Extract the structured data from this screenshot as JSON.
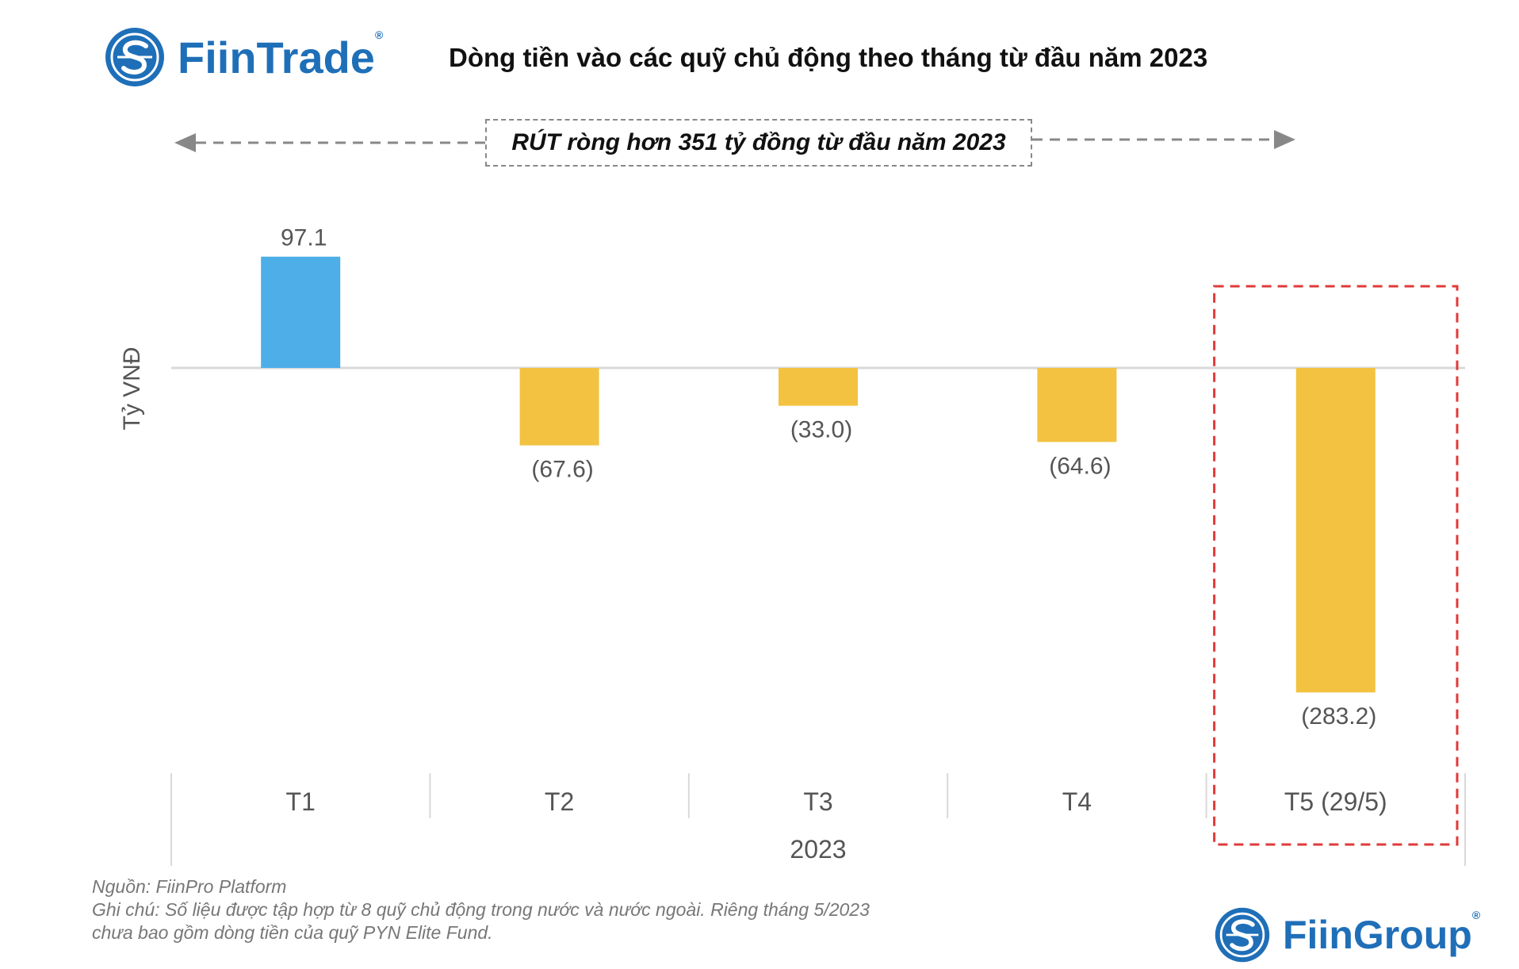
{
  "brand": {
    "name": "FiinTrade",
    "group_name": "FiinGroup",
    "mark": "®",
    "icon": "fiin-s-logo-icon"
  },
  "title": "Dòng tiền vào các quỹ chủ động theo tháng từ đầu năm 2023",
  "banner": "RÚT ròng hơn 351 tỷ đồng từ đầu năm 2023",
  "footer": {
    "source": "Nguồn: FiinPro Platform",
    "note_line1": "Ghi chú: Số liệu được tập hợp từ 8 quỹ chủ động trong nước và nước ngoài. Riêng tháng 5/2023",
    "note_line2": "chưa bao gồm dòng tiền của quỹ PYN Elite Fund."
  },
  "colors": {
    "positive": "#4daee8",
    "negative": "#f3c241",
    "highlight": "#e03a3a",
    "brand": "#1f6fb8"
  },
  "chart_data": {
    "type": "bar",
    "title": "Dòng tiền vào các quỹ chủ động theo tháng từ đầu năm 2023",
    "ylabel": "Tỷ VNĐ",
    "xlabel": "2023",
    "categories": [
      "T1",
      "T2",
      "T3",
      "T4",
      "T5 (29/5)"
    ],
    "values": [
      97.1,
      -67.6,
      -33.0,
      -64.6,
      -283.2
    ],
    "data_labels": [
      "97.1",
      "(67.6)",
      "(33.0)",
      "(64.6)",
      "(283.2)"
    ],
    "group_label": "2023",
    "highlight_category": "T5 (29/5)",
    "ylim": [
      -330,
      130
    ],
    "grid": false
  }
}
